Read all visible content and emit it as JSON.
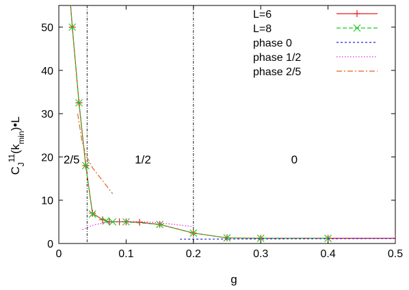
{
  "chart_data": {
    "type": "line",
    "xlabel": "g",
    "ylabel_parts": {
      "base": "C",
      "sub": "J",
      "sup": "11",
      "arg_open": "(k",
      "arg_sub": "min",
      "arg_close": ")•L"
    },
    "xlim": [
      0,
      0.5
    ],
    "ylim": [
      0,
      55
    ],
    "xticks": [
      0,
      0.1,
      0.2,
      0.3,
      0.4,
      0.5
    ],
    "xtick_labels": [
      "0",
      "0.1",
      "0.2",
      "0.3",
      "0.4",
      "0.5"
    ],
    "yticks": [
      0,
      10,
      20,
      30,
      40,
      50
    ],
    "ytick_labels": [
      "0",
      "10",
      "20",
      "30",
      "40",
      "50"
    ],
    "grid": false,
    "legend_position": "top-right",
    "vertical_lines": [
      0.042,
      0.2
    ],
    "region_labels": [
      {
        "text": "2/5",
        "x": 0.019,
        "y": 18.5
      },
      {
        "text": "1/2",
        "x": 0.125,
        "y": 18.5
      },
      {
        "text": "0",
        "x": 0.35,
        "y": 18.5
      }
    ],
    "series": [
      {
        "name": "L=6",
        "color": "#e41a1c",
        "style": "solid",
        "marker": "plus",
        "points": [
          [
            0.015,
            60
          ],
          [
            0.02,
            50
          ],
          [
            0.03,
            32.5
          ],
          [
            0.04,
            18
          ],
          [
            0.05,
            7
          ],
          [
            0.065,
            5.5
          ],
          [
            0.075,
            5
          ],
          [
            0.09,
            5
          ],
          [
            0.1,
            5
          ],
          [
            0.12,
            4.9
          ],
          [
            0.15,
            4.4
          ],
          [
            0.2,
            2.4
          ],
          [
            0.25,
            1.3
          ],
          [
            0.3,
            1.2
          ],
          [
            0.4,
            1.2
          ],
          [
            0.5,
            1.2
          ]
        ]
      },
      {
        "name": "L=8",
        "color": "#1ec81e",
        "style": "dashed",
        "marker": "x",
        "points": [
          [
            0.015,
            60
          ],
          [
            0.02,
            50
          ],
          [
            0.03,
            32.5
          ],
          [
            0.04,
            18
          ],
          [
            0.05,
            6.8
          ],
          [
            0.07,
            5.2
          ],
          [
            0.08,
            5
          ],
          [
            0.1,
            5
          ],
          [
            0.15,
            4.4
          ],
          [
            0.2,
            2.4
          ],
          [
            0.25,
            1.3
          ],
          [
            0.3,
            1.2
          ],
          [
            0.4,
            1.2
          ]
        ]
      },
      {
        "name": "phase 0",
        "color": "#2020d8",
        "style": "dashed-fine",
        "marker": "none",
        "points": [
          [
            0.18,
            1
          ],
          [
            0.5,
            1.15
          ]
        ]
      },
      {
        "name": "phase 1/2",
        "color": "#e020e0",
        "style": "dotted",
        "marker": "none",
        "points": [
          [
            0.035,
            3.2
          ],
          [
            0.05,
            4.2
          ],
          [
            0.07,
            4.9
          ],
          [
            0.1,
            5.1
          ],
          [
            0.13,
            5
          ],
          [
            0.16,
            4.6
          ],
          [
            0.2,
            3.9
          ]
        ]
      },
      {
        "name": "phase 2/5",
        "color": "#e06020",
        "style": "dashdot",
        "marker": "none",
        "points": [
          [
            0.028,
            30
          ],
          [
            0.034,
            24
          ],
          [
            0.04,
            20.5
          ],
          [
            0.05,
            17.5
          ],
          [
            0.06,
            15.5
          ],
          [
            0.07,
            13.5
          ],
          [
            0.08,
            11.5
          ]
        ]
      }
    ]
  }
}
